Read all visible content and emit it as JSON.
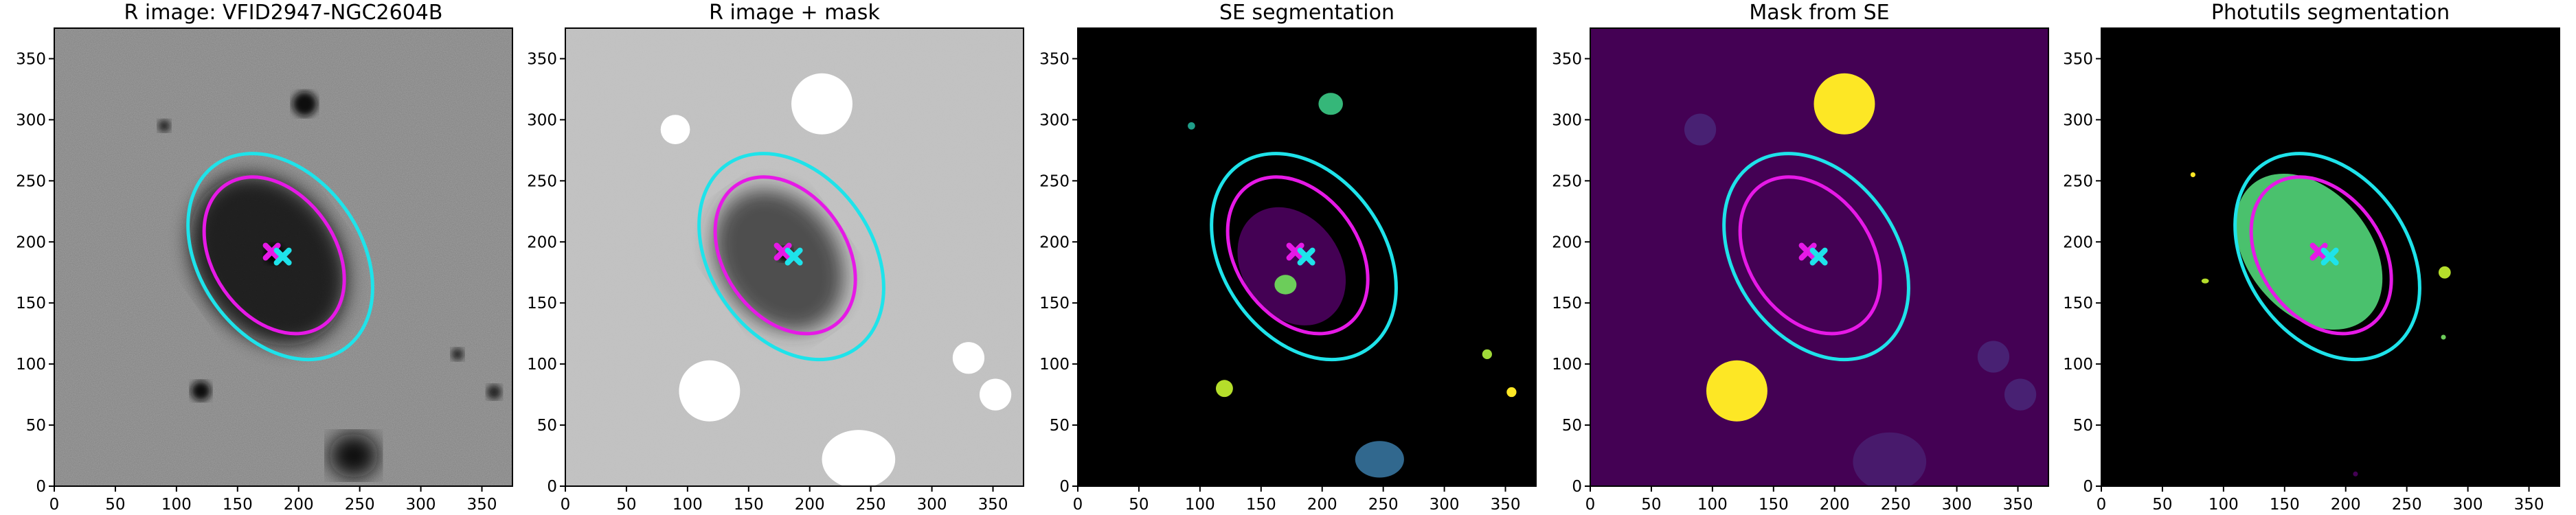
{
  "chart_data": [
    {
      "type": "image",
      "title": "R image: VFID2947-NGC2604B",
      "background": "#808080",
      "xlim": [
        0,
        375
      ],
      "ylim": [
        0,
        375
      ],
      "xticks": [
        0,
        50,
        100,
        150,
        200,
        250,
        300,
        350
      ],
      "yticks": [
        0,
        50,
        100,
        150,
        200,
        250,
        300,
        350
      ],
      "ellipses": [
        {
          "color": "#1ee3ea",
          "x": 185,
          "y": 188,
          "a": 92,
          "b": 66,
          "angle": 125
        },
        {
          "color": "#e619e6",
          "x": 180,
          "y": 189,
          "a": 70,
          "b": 50,
          "angle": 125
        }
      ],
      "markers": [
        {
          "color": "#e619e6",
          "x": 178,
          "y": 192
        },
        {
          "color": "#1ee3ea",
          "x": 187,
          "y": 188
        }
      ]
    },
    {
      "type": "image",
      "title": "R image + mask",
      "background": "#c4c4c4",
      "xlim": [
        0,
        375
      ],
      "ylim": [
        0,
        375
      ],
      "xticks": [
        0,
        50,
        100,
        150,
        200,
        250,
        300,
        350
      ],
      "yticks": [
        0,
        50,
        100,
        150,
        200,
        250,
        300,
        350
      ],
      "ellipses": [
        {
          "color": "#1ee3ea",
          "x": 185,
          "y": 188,
          "a": 92,
          "b": 66,
          "angle": 125
        },
        {
          "color": "#e619e6",
          "x": 180,
          "y": 189,
          "a": 70,
          "b": 50,
          "angle": 125
        }
      ],
      "markers": [
        {
          "color": "#e619e6",
          "x": 178,
          "y": 192
        },
        {
          "color": "#1ee3ea",
          "x": 187,
          "y": 188
        }
      ]
    },
    {
      "type": "image",
      "title": "SE segmentation",
      "background": "#000000",
      "xlim": [
        0,
        375
      ],
      "ylim": [
        0,
        375
      ],
      "xticks": [
        0,
        50,
        100,
        150,
        200,
        250,
        300,
        350
      ],
      "yticks": [
        0,
        50,
        100,
        150,
        200,
        250,
        300,
        350
      ],
      "ellipses": [
        {
          "color": "#1ee3ea",
          "x": 185,
          "y": 188,
          "a": 92,
          "b": 66,
          "angle": 125
        },
        {
          "color": "#e619e6",
          "x": 180,
          "y": 189,
          "a": 70,
          "b": 50,
          "angle": 125
        }
      ],
      "markers": [
        {
          "color": "#e619e6",
          "x": 178,
          "y": 192
        },
        {
          "color": "#1ee3ea",
          "x": 187,
          "y": 188
        }
      ]
    },
    {
      "type": "image",
      "title": "Mask from SE",
      "background": "#440154",
      "xlim": [
        0,
        375
      ],
      "ylim": [
        0,
        375
      ],
      "xticks": [
        0,
        50,
        100,
        150,
        200,
        250,
        300,
        350
      ],
      "yticks": [
        0,
        50,
        100,
        150,
        200,
        250,
        300,
        350
      ],
      "ellipses": [
        {
          "color": "#1ee3ea",
          "x": 185,
          "y": 188,
          "a": 92,
          "b": 66,
          "angle": 125
        },
        {
          "color": "#e619e6",
          "x": 180,
          "y": 189,
          "a": 70,
          "b": 50,
          "angle": 125
        }
      ],
      "markers": [
        {
          "color": "#e619e6",
          "x": 178,
          "y": 192
        },
        {
          "color": "#1ee3ea",
          "x": 187,
          "y": 188
        }
      ]
    },
    {
      "type": "image",
      "title": "Photutils segmentation",
      "background": "#000000",
      "xlim": [
        0,
        375
      ],
      "ylim": [
        0,
        375
      ],
      "xticks": [
        0,
        50,
        100,
        150,
        200,
        250,
        300,
        350
      ],
      "yticks": [
        0,
        50,
        100,
        150,
        200,
        250,
        300,
        350
      ],
      "ellipses": [
        {
          "color": "#1ee3ea",
          "x": 185,
          "y": 188,
          "a": 92,
          "b": 66,
          "angle": 125
        },
        {
          "color": "#e619e6",
          "x": 180,
          "y": 189,
          "a": 70,
          "b": 50,
          "angle": 125
        }
      ],
      "markers": [
        {
          "color": "#e619e6",
          "x": 178,
          "y": 192
        },
        {
          "color": "#1ee3ea",
          "x": 187,
          "y": 188
        }
      ]
    }
  ]
}
